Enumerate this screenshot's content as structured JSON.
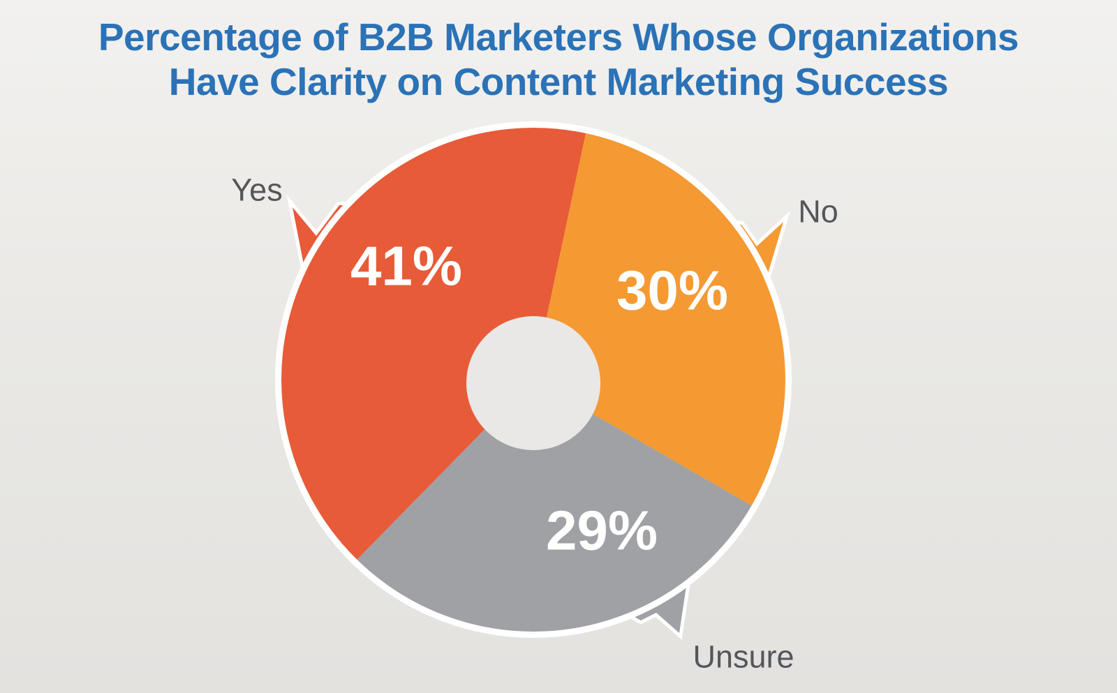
{
  "title_lines": [
    "Percentage of B2B Marketers Whose Organizations",
    "Have Clarity on Content Marketing Success"
  ],
  "chart_data": {
    "type": "pie",
    "donut": true,
    "title": "Percentage of B2B Marketers Whose Organizations Have Clarity on Content Marketing Success",
    "slices": [
      {
        "label": "Yes",
        "value": 41,
        "pct_label": "41%",
        "color": "#e75b38"
      },
      {
        "label": "No",
        "value": 30,
        "pct_label": "30%",
        "color": "#f59932"
      },
      {
        "label": "Unsure",
        "value": 29,
        "pct_label": "29%",
        "color": "#a0a1a4"
      }
    ],
    "start_angle_deg": 224.4,
    "legend_position": "callout-labels-outside",
    "grid": false
  },
  "colors": {
    "title_text": "#2b72b6",
    "callout_text": "#55565a",
    "percent_text": "#ffffff",
    "ring": "#ffffff",
    "donut_hole": "#e9e8e6",
    "background_top": "#f2f1ef",
    "background_bottom": "#e3e2df"
  }
}
